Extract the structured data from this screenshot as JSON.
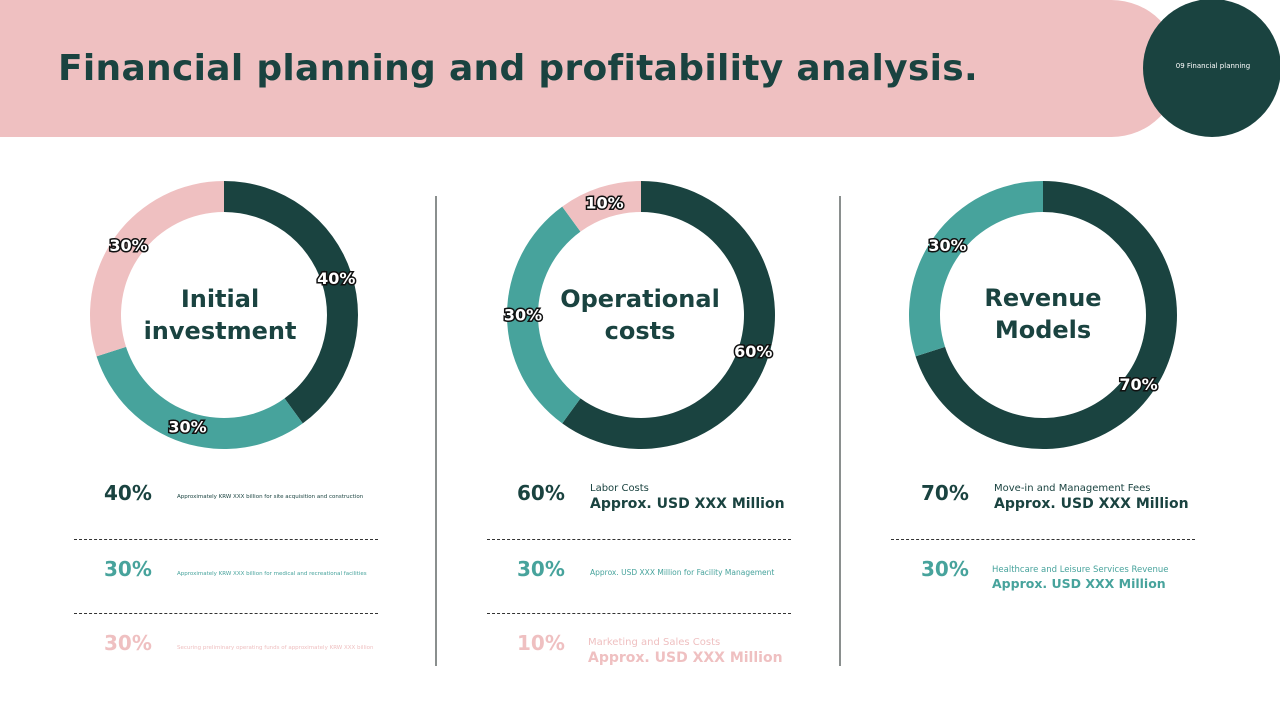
{
  "header": {
    "title": "Financial planning and profitability analysis.",
    "section_label": "09 Financial planning"
  },
  "colors": {
    "dark": "#1a4340",
    "teal": "#47a39c",
    "pink": "#efc0c1"
  },
  "chart_data": [
    {
      "type": "pie",
      "title": "Initial investment",
      "categories": [
        "Approximately KRW XXX billion for site acquisition and construction",
        "Approximately KRW XXX billion for medical and recreational facilities",
        "Securing preliminary operating funds of approximately KRW XXX billion"
      ],
      "values": [
        40,
        30,
        30
      ],
      "labels": [
        "40%",
        "30%",
        "30%"
      ],
      "colors": [
        "#1a4340",
        "#47a39c",
        "#efc0c1"
      ]
    },
    {
      "type": "pie",
      "title": "Operational costs",
      "categories": [
        "Labor Costs",
        "Approx. USD XXX Million for Facility Management",
        "Marketing and Sales Costs"
      ],
      "values": [
        60,
        30,
        10
      ],
      "labels": [
        "60%",
        "30%",
        "10%"
      ],
      "colors": [
        "#1a4340",
        "#47a39c",
        "#efc0c1"
      ]
    },
    {
      "type": "pie",
      "title": "Revenue Models",
      "categories": [
        "Move-in and Management Fees",
        "Healthcare and Leisure Services Revenue"
      ],
      "values": [
        70,
        30
      ],
      "labels": [
        "70%",
        "30%"
      ],
      "colors": [
        "#1a4340",
        "#47a39c"
      ]
    }
  ],
  "panels": [
    {
      "title_line1": "Initial",
      "title_line2": "investment",
      "rows": [
        {
          "pct": "40%",
          "desc": "Approximately KRW XXX billion for site acquisition and construction"
        },
        {
          "pct": "30%",
          "desc": "Approximately KRW XXX billion for medical and recreational facilities"
        },
        {
          "pct": "30%",
          "desc": "Securing preliminary operating funds of approximately KRW XXX billion"
        }
      ]
    },
    {
      "title_line1": "Operational",
      "title_line2": "costs",
      "rows": [
        {
          "pct": "60%",
          "label": "Labor Costs",
          "amount": "Approx. USD XXX Million"
        },
        {
          "pct": "30%",
          "desc": "Approx. USD XXX Million for Facility Management"
        },
        {
          "pct": "10%",
          "label": "Marketing and Sales Costs",
          "amount": "Approx. USD XXX Million"
        }
      ]
    },
    {
      "title_line1": "Revenue",
      "title_line2": "Models",
      "rows": [
        {
          "pct": "70%",
          "label": "Move-in and Management Fees",
          "amount": "Approx. USD XXX Million"
        },
        {
          "pct": "30%",
          "label": "Healthcare and Leisure Services Revenue",
          "amount": "Approx. USD XXX Million"
        }
      ]
    }
  ]
}
